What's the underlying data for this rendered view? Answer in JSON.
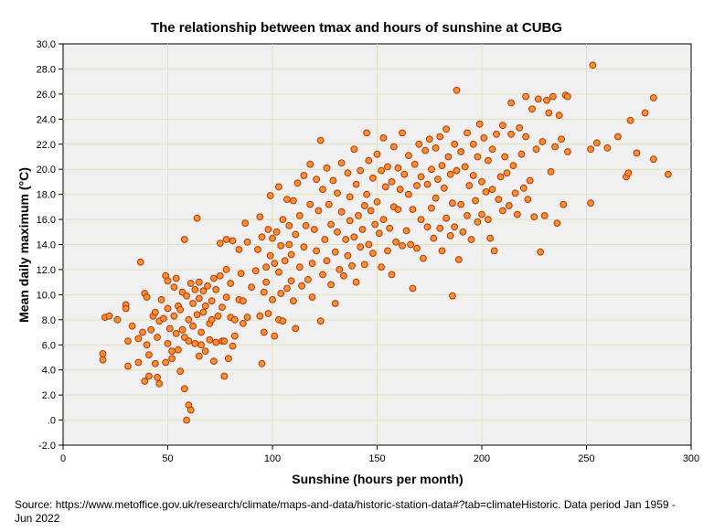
{
  "chart_data": {
    "type": "scatter",
    "title": "The relationship between tmax and hours of sunshine at CUBG",
    "xlabel": "Sunshine (hours per month)",
    "ylabel": "Mean daily maximum (°C)",
    "xlim": [
      0,
      300
    ],
    "ylim": [
      -2,
      30
    ],
    "x_ticks": [
      0,
      50,
      100,
      150,
      200,
      250,
      300
    ],
    "x_tick_labels": [
      "0",
      "50",
      "100",
      "150",
      "200",
      "250",
      "300"
    ],
    "y_ticks": [
      -2,
      0,
      2,
      4,
      6,
      8,
      10,
      12,
      14,
      16,
      18,
      20,
      22,
      24,
      26,
      28,
      30
    ],
    "y_tick_labels": [
      "-2.0",
      ".0",
      "2.0",
      "4.0",
      "6.0",
      "8.0",
      "10.0",
      "12.0",
      "14.0",
      "16.0",
      "18.0",
      "20.0",
      "22.0",
      "24.0",
      "26.0",
      "28.0",
      "30.0"
    ],
    "grid": true,
    "marker_fill": "#f7912d",
    "marker_edge": "#b7340f",
    "plot_background": "#f0f0f0",
    "grid_color": "#e2e2b8",
    "points": [
      [
        19,
        4.8
      ],
      [
        19,
        5.3
      ],
      [
        20,
        8.2
      ],
      [
        22,
        8.3
      ],
      [
        26,
        8.0
      ],
      [
        30,
        9.2
      ],
      [
        31,
        4.3
      ],
      [
        31,
        6.3
      ],
      [
        33,
        7.5
      ],
      [
        30,
        8.9
      ],
      [
        36,
        4.6
      ],
      [
        36,
        6.5
      ],
      [
        37,
        12.6
      ],
      [
        38,
        7.0
      ],
      [
        39,
        10.1
      ],
      [
        39,
        3.1
      ],
      [
        40,
        9.8
      ],
      [
        40,
        6.0
      ],
      [
        41,
        3.5
      ],
      [
        41,
        5.2
      ],
      [
        42,
        7.2
      ],
      [
        43,
        8.3
      ],
      [
        44,
        8.6
      ],
      [
        44,
        4.5
      ],
      [
        45,
        6.6
      ],
      [
        45,
        3.4
      ],
      [
        46,
        7.9
      ],
      [
        46,
        2.9
      ],
      [
        47,
        9.6
      ],
      [
        48,
        8.1
      ],
      [
        49,
        11.5
      ],
      [
        49,
        4.6
      ],
      [
        50,
        6.1
      ],
      [
        50,
        11.1
      ],
      [
        50,
        8.9
      ],
      [
        51,
        7.3
      ],
      [
        52,
        5.5
      ],
      [
        52,
        4.9
      ],
      [
        53,
        8.3
      ],
      [
        53,
        10.6
      ],
      [
        54,
        6.9
      ],
      [
        54,
        11.3
      ],
      [
        55,
        9.1
      ],
      [
        55,
        5.6
      ],
      [
        56,
        8.8
      ],
      [
        56,
        3.9
      ],
      [
        57,
        10.2
      ],
      [
        57,
        7.2
      ],
      [
        58,
        6.6
      ],
      [
        58,
        2.5
      ],
      [
        58,
        14.4
      ],
      [
        59,
        0.0
      ],
      [
        59,
        9.9
      ],
      [
        60,
        1.2
      ],
      [
        60,
        8.0
      ],
      [
        60,
        6.3
      ],
      [
        61,
        0.8
      ],
      [
        61,
        10.9
      ],
      [
        62,
        7.5
      ],
      [
        62,
        9.3
      ],
      [
        63,
        6.1
      ],
      [
        63,
        10.4
      ],
      [
        64,
        8.4
      ],
      [
        64,
        16.1
      ],
      [
        65,
        5.1
      ],
      [
        65,
        9.7
      ],
      [
        65,
        11.0
      ],
      [
        66,
        7.0
      ],
      [
        66,
        6.0
      ],
      [
        67,
        10.3
      ],
      [
        67,
        8.6
      ],
      [
        68,
        5.5
      ],
      [
        68,
        9.1
      ],
      [
        69,
        10.7
      ],
      [
        70,
        7.7
      ],
      [
        70,
        6.4
      ],
      [
        71,
        8.0
      ],
      [
        71,
        9.5
      ],
      [
        72,
        11.3
      ],
      [
        72,
        4.7
      ],
      [
        73,
        6.2
      ],
      [
        73,
        10.4
      ],
      [
        74,
        8.3
      ],
      [
        75,
        11.5
      ],
      [
        75,
        14.1
      ],
      [
        76,
        6.3
      ],
      [
        76,
        9.0
      ],
      [
        77,
        3.5
      ],
      [
        77,
        6.3
      ],
      [
        78,
        12.0
      ],
      [
        78,
        9.8
      ],
      [
        78,
        14.4
      ],
      [
        79,
        4.9
      ],
      [
        80,
        10.9
      ],
      [
        80,
        8.2
      ],
      [
        81,
        14.3
      ],
      [
        81,
        5.9
      ],
      [
        82,
        8.0
      ],
      [
        82,
        6.7
      ],
      [
        84,
        9.6
      ],
      [
        84,
        13.6
      ],
      [
        85,
        11.7
      ],
      [
        86,
        9.5
      ],
      [
        86,
        7.7
      ],
      [
        87,
        15.7
      ],
      [
        88,
        8.2
      ],
      [
        88,
        14.2
      ],
      [
        90,
        10.6
      ],
      [
        92,
        11.9
      ],
      [
        93,
        13.6
      ],
      [
        94,
        8.3
      ],
      [
        94,
        16.2
      ],
      [
        95,
        14.6
      ],
      [
        95,
        4.5
      ],
      [
        96,
        7.0
      ],
      [
        96,
        10.2
      ],
      [
        97,
        12.2
      ],
      [
        97,
        11.0
      ],
      [
        98,
        15.2
      ],
      [
        98,
        8.5
      ],
      [
        99,
        17.9
      ],
      [
        99,
        13.1
      ],
      [
        100,
        14.5
      ],
      [
        100,
        9.6
      ],
      [
        101,
        12.5
      ],
      [
        101,
        6.7
      ],
      [
        102,
        15.0
      ],
      [
        103,
        18.6
      ],
      [
        103,
        11.8
      ],
      [
        103,
        8.0
      ],
      [
        104,
        13.9
      ],
      [
        104,
        10.1
      ],
      [
        105,
        16.0
      ],
      [
        105,
        7.9
      ],
      [
        106,
        12.7
      ],
      [
        107,
        17.6
      ],
      [
        107,
        10.5
      ],
      [
        108,
        15.5
      ],
      [
        108,
        14.0
      ],
      [
        109,
        13.2
      ],
      [
        109,
        11.1
      ],
      [
        110,
        9.5
      ],
      [
        110,
        17.5
      ],
      [
        111,
        7.3
      ],
      [
        111,
        14.8
      ],
      [
        112,
        18.9
      ],
      [
        113,
        16.3
      ],
      [
        113,
        12.2
      ],
      [
        114,
        10.7
      ],
      [
        115,
        19.5
      ],
      [
        115,
        13.8
      ],
      [
        116,
        15.5
      ],
      [
        117,
        11.2
      ],
      [
        118,
        20.4
      ],
      [
        118,
        17.2
      ],
      [
        119,
        12.5
      ],
      [
        119,
        9.8
      ],
      [
        120,
        15.2
      ],
      [
        121,
        19.2
      ],
      [
        121,
        13.5
      ],
      [
        122,
        16.7
      ],
      [
        123,
        22.3
      ],
      [
        123,
        7.9
      ],
      [
        124,
        18.4
      ],
      [
        124,
        11.6
      ],
      [
        125,
        14.4
      ],
      [
        126,
        20.1
      ],
      [
        126,
        12.7
      ],
      [
        127,
        17.2
      ],
      [
        128,
        15.6
      ],
      [
        128,
        10.8
      ],
      [
        129,
        19.1
      ],
      [
        130,
        13.4
      ],
      [
        130,
        9.3
      ],
      [
        131,
        18.1
      ],
      [
        131,
        15.0
      ],
      [
        132,
        12.0
      ],
      [
        133,
        20.5
      ],
      [
        133,
        16.6
      ],
      [
        134,
        11.5
      ],
      [
        135,
        14.4
      ],
      [
        136,
        19.7
      ],
      [
        136,
        13.1
      ],
      [
        137,
        17.8
      ],
      [
        137,
        15.9
      ],
      [
        138,
        12.3
      ],
      [
        139,
        21.6
      ],
      [
        139,
        14.6
      ],
      [
        140,
        18.8
      ],
      [
        140,
        11.0
      ],
      [
        141,
        16.3
      ],
      [
        142,
        19.9
      ],
      [
        142,
        13.8
      ],
      [
        143,
        15.2
      ],
      [
        144,
        17.1
      ],
      [
        144,
        12.4
      ],
      [
        145,
        22.9
      ],
      [
        145,
        18.0
      ],
      [
        146,
        14.0
      ],
      [
        146,
        20.7
      ],
      [
        147,
        16.7
      ],
      [
        148,
        13.3
      ],
      [
        148,
        19.3
      ],
      [
        149,
        15.6
      ],
      [
        150,
        21.2
      ],
      [
        150,
        17.4
      ],
      [
        151,
        14.9
      ],
      [
        152,
        12.2
      ],
      [
        152,
        19.9
      ],
      [
        153,
        16.0
      ],
      [
        153,
        22.5
      ],
      [
        154,
        18.6
      ],
      [
        155,
        13.5
      ],
      [
        155,
        20.2
      ],
      [
        156,
        15.3
      ],
      [
        157,
        19.0
      ],
      [
        157,
        11.6
      ],
      [
        158,
        17.0
      ],
      [
        158,
        21.8
      ],
      [
        159,
        14.2
      ],
      [
        160,
        20.1
      ],
      [
        160,
        16.8
      ],
      [
        161,
        18.4
      ],
      [
        162,
        13.9
      ],
      [
        162,
        22.9
      ],
      [
        163,
        19.6
      ],
      [
        164,
        15.1
      ],
      [
        165,
        18.0
      ],
      [
        165,
        21.1
      ],
      [
        166,
        14.0
      ],
      [
        167,
        16.8
      ],
      [
        167,
        10.5
      ],
      [
        168,
        20.4
      ],
      [
        169,
        13.7
      ],
      [
        169,
        18.7
      ],
      [
        170,
        22.0
      ],
      [
        171,
        16.0
      ],
      [
        171,
        19.4
      ],
      [
        172,
        12.9
      ],
      [
        173,
        21.5
      ],
      [
        174,
        15.4
      ],
      [
        174,
        18.8
      ],
      [
        175,
        22.4
      ],
      [
        176,
        16.9
      ],
      [
        176,
        20.0
      ],
      [
        177,
        14.5
      ],
      [
        178,
        21.7
      ],
      [
        178,
        17.7
      ],
      [
        179,
        19.2
      ],
      [
        180,
        15.3
      ],
      [
        180,
        22.6
      ],
      [
        181,
        13.5
      ],
      [
        181,
        20.3
      ],
      [
        182,
        18.5
      ],
      [
        183,
        16.1
      ],
      [
        183,
        23.2
      ],
      [
        184,
        21.0
      ],
      [
        185,
        14.7
      ],
      [
        185,
        19.6
      ],
      [
        186,
        9.9
      ],
      [
        186,
        17.3
      ],
      [
        187,
        22.0
      ],
      [
        187,
        15.4
      ],
      [
        188,
        26.3
      ],
      [
        188,
        19.9
      ],
      [
        189,
        12.8
      ],
      [
        190,
        21.4
      ],
      [
        190,
        17.2
      ],
      [
        191,
        15.0
      ],
      [
        192,
        20.2
      ],
      [
        193,
        22.9
      ],
      [
        193,
        16.3
      ],
      [
        194,
        18.7
      ],
      [
        195,
        14.4
      ],
      [
        196,
        22.0
      ],
      [
        196,
        19.5
      ],
      [
        197,
        17.5
      ],
      [
        198,
        21.0
      ],
      [
        198,
        15.8
      ],
      [
        199,
        23.6
      ],
      [
        200,
        19.0
      ],
      [
        200,
        16.4
      ],
      [
        201,
        22.5
      ],
      [
        202,
        18.2
      ],
      [
        203,
        20.7
      ],
      [
        203,
        16.0
      ],
      [
        204,
        14.5
      ],
      [
        205,
        21.6
      ],
      [
        205,
        18.4
      ],
      [
        206,
        13.5
      ],
      [
        207,
        22.8
      ],
      [
        208,
        17.6
      ],
      [
        209,
        19.4
      ],
      [
        210,
        23.5
      ],
      [
        210,
        16.7
      ],
      [
        211,
        21.0
      ],
      [
        212,
        19.7
      ],
      [
        213,
        17.1
      ],
      [
        214,
        25.3
      ],
      [
        214,
        22.8
      ],
      [
        215,
        20.3
      ],
      [
        216,
        18.1
      ],
      [
        217,
        16.4
      ],
      [
        218,
        23.3
      ],
      [
        219,
        21.2
      ],
      [
        220,
        18.5
      ],
      [
        221,
        25.8
      ],
      [
        221,
        22.6
      ],
      [
        222,
        17.6
      ],
      [
        223,
        19.1
      ],
      [
        224,
        24.8
      ],
      [
        225,
        16.2
      ],
      [
        226,
        21.6
      ],
      [
        227,
        25.6
      ],
      [
        228,
        13.4
      ],
      [
        229,
        22.2
      ],
      [
        230,
        16.3
      ],
      [
        231,
        25.5
      ],
      [
        232,
        24.5
      ],
      [
        233,
        19.8
      ],
      [
        234,
        25.8
      ],
      [
        235,
        21.8
      ],
      [
        236,
        15.7
      ],
      [
        237,
        24.3
      ],
      [
        238,
        22.4
      ],
      [
        239,
        17.2
      ],
      [
        240,
        25.9
      ],
      [
        241,
        21.4
      ],
      [
        241,
        25.8
      ],
      [
        252,
        21.6
      ],
      [
        252,
        17.3
      ],
      [
        253,
        28.3
      ],
      [
        255,
        22.1
      ],
      [
        260,
        21.7
      ],
      [
        265,
        22.6
      ],
      [
        269,
        19.4
      ],
      [
        270,
        19.7
      ],
      [
        271,
        23.9
      ],
      [
        274,
        21.3
      ],
      [
        278,
        24.5
      ],
      [
        282,
        25.7
      ],
      [
        282,
        20.8
      ],
      [
        289,
        19.6
      ]
    ]
  },
  "source": {
    "text": "Source: https://www.metoffice.gov.uk/research/climate/maps-and-data/historic-station-data#?tab=climateHistoric. Data period Jan 1959 - Jun 2022"
  }
}
